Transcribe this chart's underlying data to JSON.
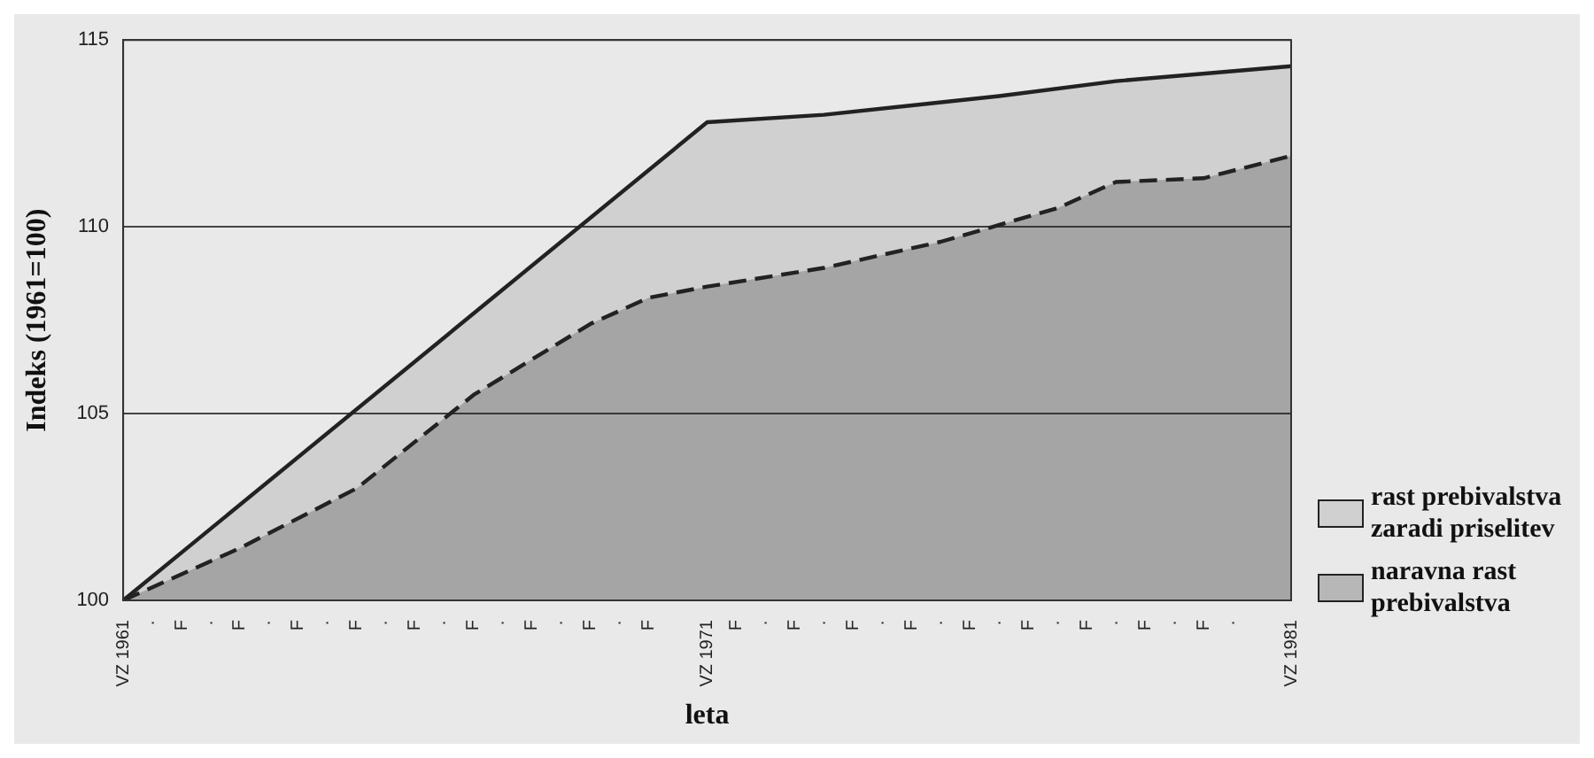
{
  "chart_data": {
    "type": "area",
    "xlabel": "leta",
    "ylabel": "Indeks (1961=100)",
    "ylim": [
      100,
      115
    ],
    "yticks": [
      100,
      105,
      110,
      115
    ],
    "categories": [
      "VZ 1961",
      "·",
      "F",
      "·",
      "F",
      "·",
      "F",
      "·",
      "F",
      "·",
      "F",
      "·",
      "F",
      "·",
      "F",
      "·",
      "F",
      "·",
      "F",
      null,
      "VZ 1971",
      "F",
      "·",
      "F",
      "·",
      "F",
      "·",
      "F",
      "·",
      "F",
      "·",
      "F",
      "·",
      "F",
      "·",
      "F",
      "·",
      "F",
      "·",
      null,
      "VZ 1981"
    ],
    "grid": "y",
    "legend": "right",
    "marker": "none",
    "series": [
      {
        "name": "rast prebivalstva zaradi priselitev",
        "color": "#222222",
        "line_style": "solid",
        "values": [
          100,
          null,
          null,
          null,
          null,
          null,
          null,
          null,
          null,
          null,
          null,
          null,
          null,
          null,
          null,
          null,
          null,
          null,
          null,
          null,
          112.8,
          null,
          null,
          null,
          113.0,
          null,
          null,
          null,
          null,
          null,
          113.5,
          null,
          null,
          null,
          113.9,
          null,
          null,
          null,
          null,
          null,
          114.3
        ]
      },
      {
        "name": "naravna rast prebivalstva",
        "color": "#222222",
        "line_style": "dashed",
        "values": [
          100,
          null,
          null,
          null,
          101.4,
          null,
          null,
          null,
          103.0,
          null,
          null,
          null,
          105.5,
          null,
          null,
          null,
          107.4,
          null,
          108.1,
          null,
          108.4,
          null,
          null,
          null,
          108.9,
          null,
          null,
          null,
          109.6,
          null,
          null,
          null,
          110.5,
          null,
          111.2,
          null,
          null,
          111.3,
          null,
          null,
          111.9
        ]
      }
    ]
  }
}
